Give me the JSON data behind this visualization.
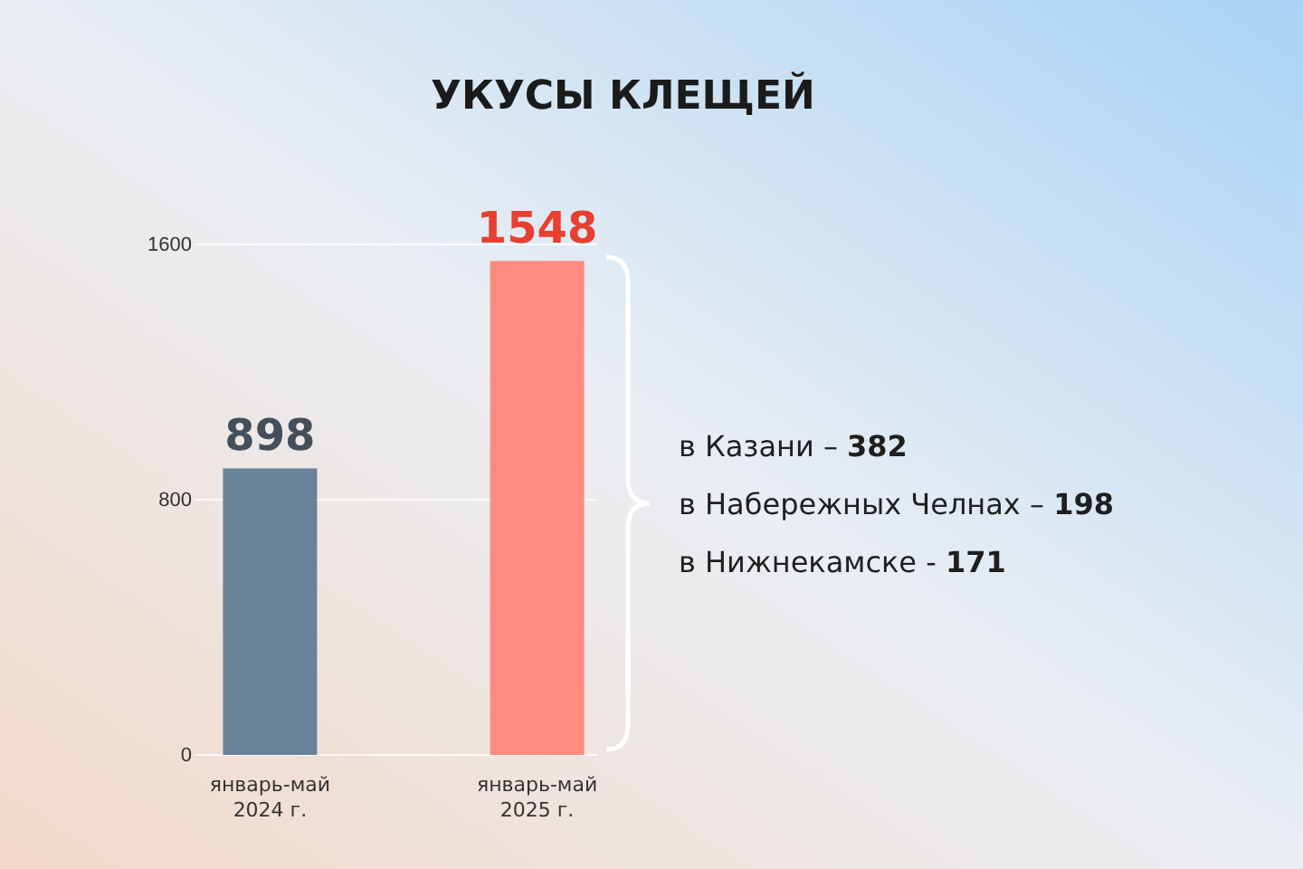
{
  "chart_data": {
    "type": "bar",
    "title": "УКУСЫ КЛЕЩЕЙ",
    "categories": [
      "январь-май 2024 г.",
      "январь-май 2025 г."
    ],
    "values": [
      898,
      1548
    ],
    "colors": [
      "#6a8299",
      "#ff8a80"
    ],
    "ylim": [
      0,
      1600
    ],
    "yticks": [
      0,
      800,
      1600
    ],
    "grid": "y",
    "data_labels": true,
    "annotations": [
      "в Казани – 382",
      "в Набережных Челнах – 198",
      "в Нижнекамске - 171"
    ]
  }
}
